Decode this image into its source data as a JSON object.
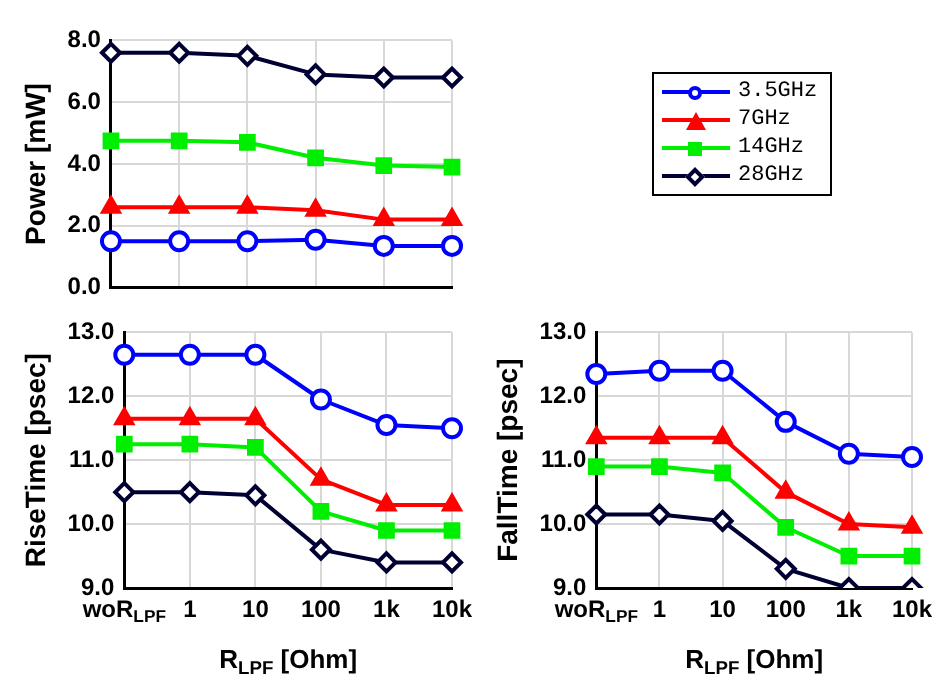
{
  "chart_data": [
    {
      "type": "line",
      "ylabel": "Power [mW]",
      "categories": [
        null,
        null,
        null,
        null,
        null,
        null
      ],
      "ylim": [
        0,
        8
      ],
      "yticks": [
        {
          "value": 0,
          "label": "0.0"
        },
        {
          "value": 2,
          "label": "2.0"
        },
        {
          "value": 4,
          "label": "4.0"
        },
        {
          "value": 6,
          "label": "6.0"
        },
        {
          "value": 8,
          "label": "8.0"
        }
      ],
      "grid": true,
      "legend": "right",
      "tick_labels": "y",
      "series": [
        {
          "name": "3.5GHz",
          "color": "#0000ff",
          "marker": "circle",
          "values": [
            1.5,
            1.5,
            1.5,
            1.55,
            1.35,
            1.35
          ]
        },
        {
          "name": "7GHz",
          "color": "#ff0000",
          "marker": "triangle",
          "values": [
            2.6,
            2.6,
            2.6,
            2.5,
            2.2,
            2.2
          ]
        },
        {
          "name": "14GHz",
          "color": "#00ee00",
          "marker": "square",
          "values": [
            4.75,
            4.75,
            4.7,
            4.2,
            3.95,
            3.9
          ]
        },
        {
          "name": "28GHz",
          "color": "#000033",
          "marker": "diamond",
          "values": [
            7.6,
            7.6,
            7.5,
            6.9,
            6.8,
            6.8
          ]
        }
      ]
    },
    {
      "type": "line",
      "ylabel": "RiseTime [psec]",
      "xlabel": "R$_{LPF}$ [Ohm]",
      "categories": [
        "woR$_{LPF}$",
        "1",
        "10",
        "100",
        "1k",
        "10k"
      ],
      "ylim": [
        9,
        13
      ],
      "yticks": [
        {
          "value": 9,
          "label": "9.0"
        },
        {
          "value": 10,
          "label": "10.0"
        },
        {
          "value": 11,
          "label": "11.0"
        },
        {
          "value": 12,
          "label": "12.0"
        },
        {
          "value": 13,
          "label": "13.0"
        }
      ],
      "grid": true,
      "series": [
        {
          "color": "#0000ff",
          "marker": "circle",
          "values": [
            12.65,
            12.65,
            12.65,
            11.95,
            11.55,
            11.5
          ]
        },
        {
          "color": "#ff0000",
          "marker": "triangle",
          "values": [
            11.65,
            11.65,
            11.65,
            10.7,
            10.3,
            10.3
          ]
        },
        {
          "color": "#00ee00",
          "marker": "square",
          "values": [
            11.25,
            11.25,
            11.2,
            10.2,
            9.9,
            9.9
          ]
        },
        {
          "color": "#000033",
          "marker": "diamond",
          "values": [
            10.5,
            10.5,
            10.45,
            9.6,
            9.4,
            9.4
          ]
        }
      ]
    },
    {
      "type": "line",
      "ylabel": "FallTime [psec]",
      "xlabel": "R$_{LPF}$ [Ohm]",
      "categories": [
        "woR$_{LPF}$",
        "1",
        "10",
        "100",
        "1k",
        "10k"
      ],
      "ylim": [
        9,
        13
      ],
      "yticks": [
        {
          "value": 9,
          "label": "9.0"
        },
        {
          "value": 10,
          "label": "10.0"
        },
        {
          "value": 11,
          "label": "11.0"
        },
        {
          "value": 12,
          "label": "12.0"
        },
        {
          "value": 13,
          "label": "13.0"
        }
      ],
      "grid": true,
      "series": [
        {
          "color": "#0000ff",
          "marker": "circle",
          "values": [
            12.35,
            12.4,
            12.4,
            11.6,
            11.1,
            11.05
          ]
        },
        {
          "color": "#ff0000",
          "marker": "triangle",
          "values": [
            11.35,
            11.35,
            11.35,
            10.5,
            10.0,
            9.95
          ]
        },
        {
          "color": "#00ee00",
          "marker": "square",
          "values": [
            10.9,
            10.9,
            10.8,
            9.95,
            9.5,
            9.5
          ]
        },
        {
          "color": "#000033",
          "marker": "diamond",
          "values": [
            10.15,
            10.15,
            10.05,
            9.3,
            9.0,
            9.0
          ]
        }
      ]
    }
  ]
}
